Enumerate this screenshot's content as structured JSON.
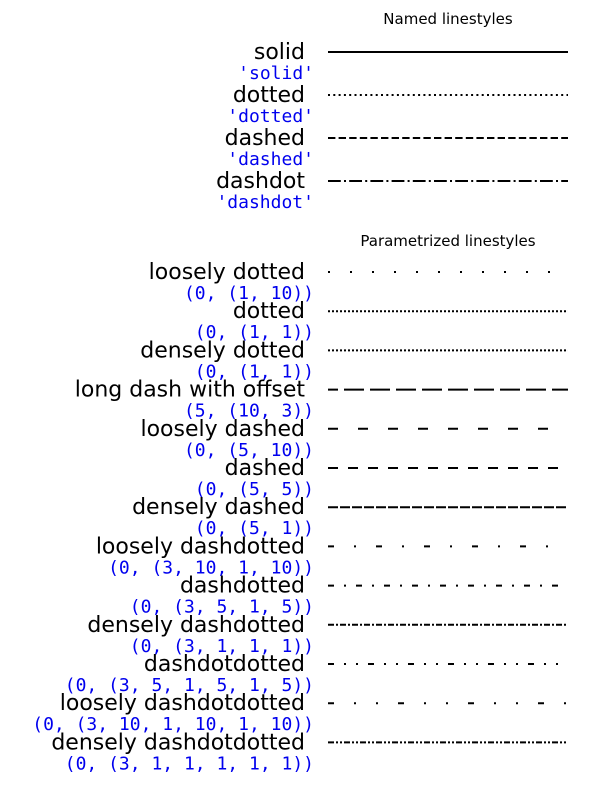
{
  "colors": {
    "code_text": "#0000ee",
    "line": "#000000",
    "name_text": "#000000",
    "background": "#ffffff"
  },
  "chart_data": [
    {
      "type": "line",
      "title": "Named linestyles",
      "items": [
        {
          "name": "solid",
          "code": "'solid'",
          "dash": null
        },
        {
          "name": "dotted",
          "code": "'dotted'",
          "dash": [
            1,
            1.65
          ]
        },
        {
          "name": "dashed",
          "code": "'dashed'",
          "dash": [
            3.7,
            1.6
          ]
        },
        {
          "name": "dashdot",
          "code": "'dashdot'",
          "dash": [
            6.4,
            1.6,
            1,
            1.6
          ]
        }
      ]
    },
    {
      "type": "line",
      "title": "Parametrized linestyles",
      "items": [
        {
          "name": "loosely dotted",
          "code": "(0, (1, 10))",
          "offset": 0,
          "dash": [
            1,
            10
          ]
        },
        {
          "name": "dotted",
          "code": "(0, (1, 1))",
          "offset": 0,
          "dash": [
            1,
            1
          ]
        },
        {
          "name": "densely dotted",
          "code": "(0, (1, 1))",
          "offset": 0,
          "dash": [
            1,
            1
          ]
        },
        {
          "name": "long dash with offset",
          "code": "(5, (10, 3))",
          "offset": 5,
          "dash": [
            10,
            3
          ]
        },
        {
          "name": "loosely dashed",
          "code": "(0, (5, 10))",
          "offset": 0,
          "dash": [
            5,
            10
          ]
        },
        {
          "name": "dashed",
          "code": "(0, (5, 5))",
          "offset": 0,
          "dash": [
            5,
            5
          ]
        },
        {
          "name": "densely dashed",
          "code": "(0, (5, 1))",
          "offset": 0,
          "dash": [
            5,
            1
          ]
        },
        {
          "name": "loosely dashdotted",
          "code": "(0, (3, 10, 1, 10))",
          "offset": 0,
          "dash": [
            3,
            10,
            1,
            10
          ]
        },
        {
          "name": "dashdotted",
          "code": "(0, (3, 5, 1, 5))",
          "offset": 0,
          "dash": [
            3,
            5,
            1,
            5
          ]
        },
        {
          "name": "densely dashdotted",
          "code": "(0, (3, 1, 1, 1))",
          "offset": 0,
          "dash": [
            3,
            1,
            1,
            1
          ]
        },
        {
          "name": "dashdotdotted",
          "code": "(0, (3, 5, 1, 5, 1, 5))",
          "offset": 0,
          "dash": [
            3,
            5,
            1,
            5,
            1,
            5
          ]
        },
        {
          "name": "loosely dashdotdotted",
          "code": "(0, (3, 10, 1, 10, 1, 10))",
          "offset": 0,
          "dash": [
            3,
            10,
            1,
            10,
            1,
            10
          ]
        },
        {
          "name": "densely dashdotdotted",
          "code": "(0, (3, 1, 1, 1, 1, 1))",
          "offset": 0,
          "dash": [
            3,
            1,
            1,
            1,
            1,
            1
          ]
        }
      ]
    }
  ]
}
